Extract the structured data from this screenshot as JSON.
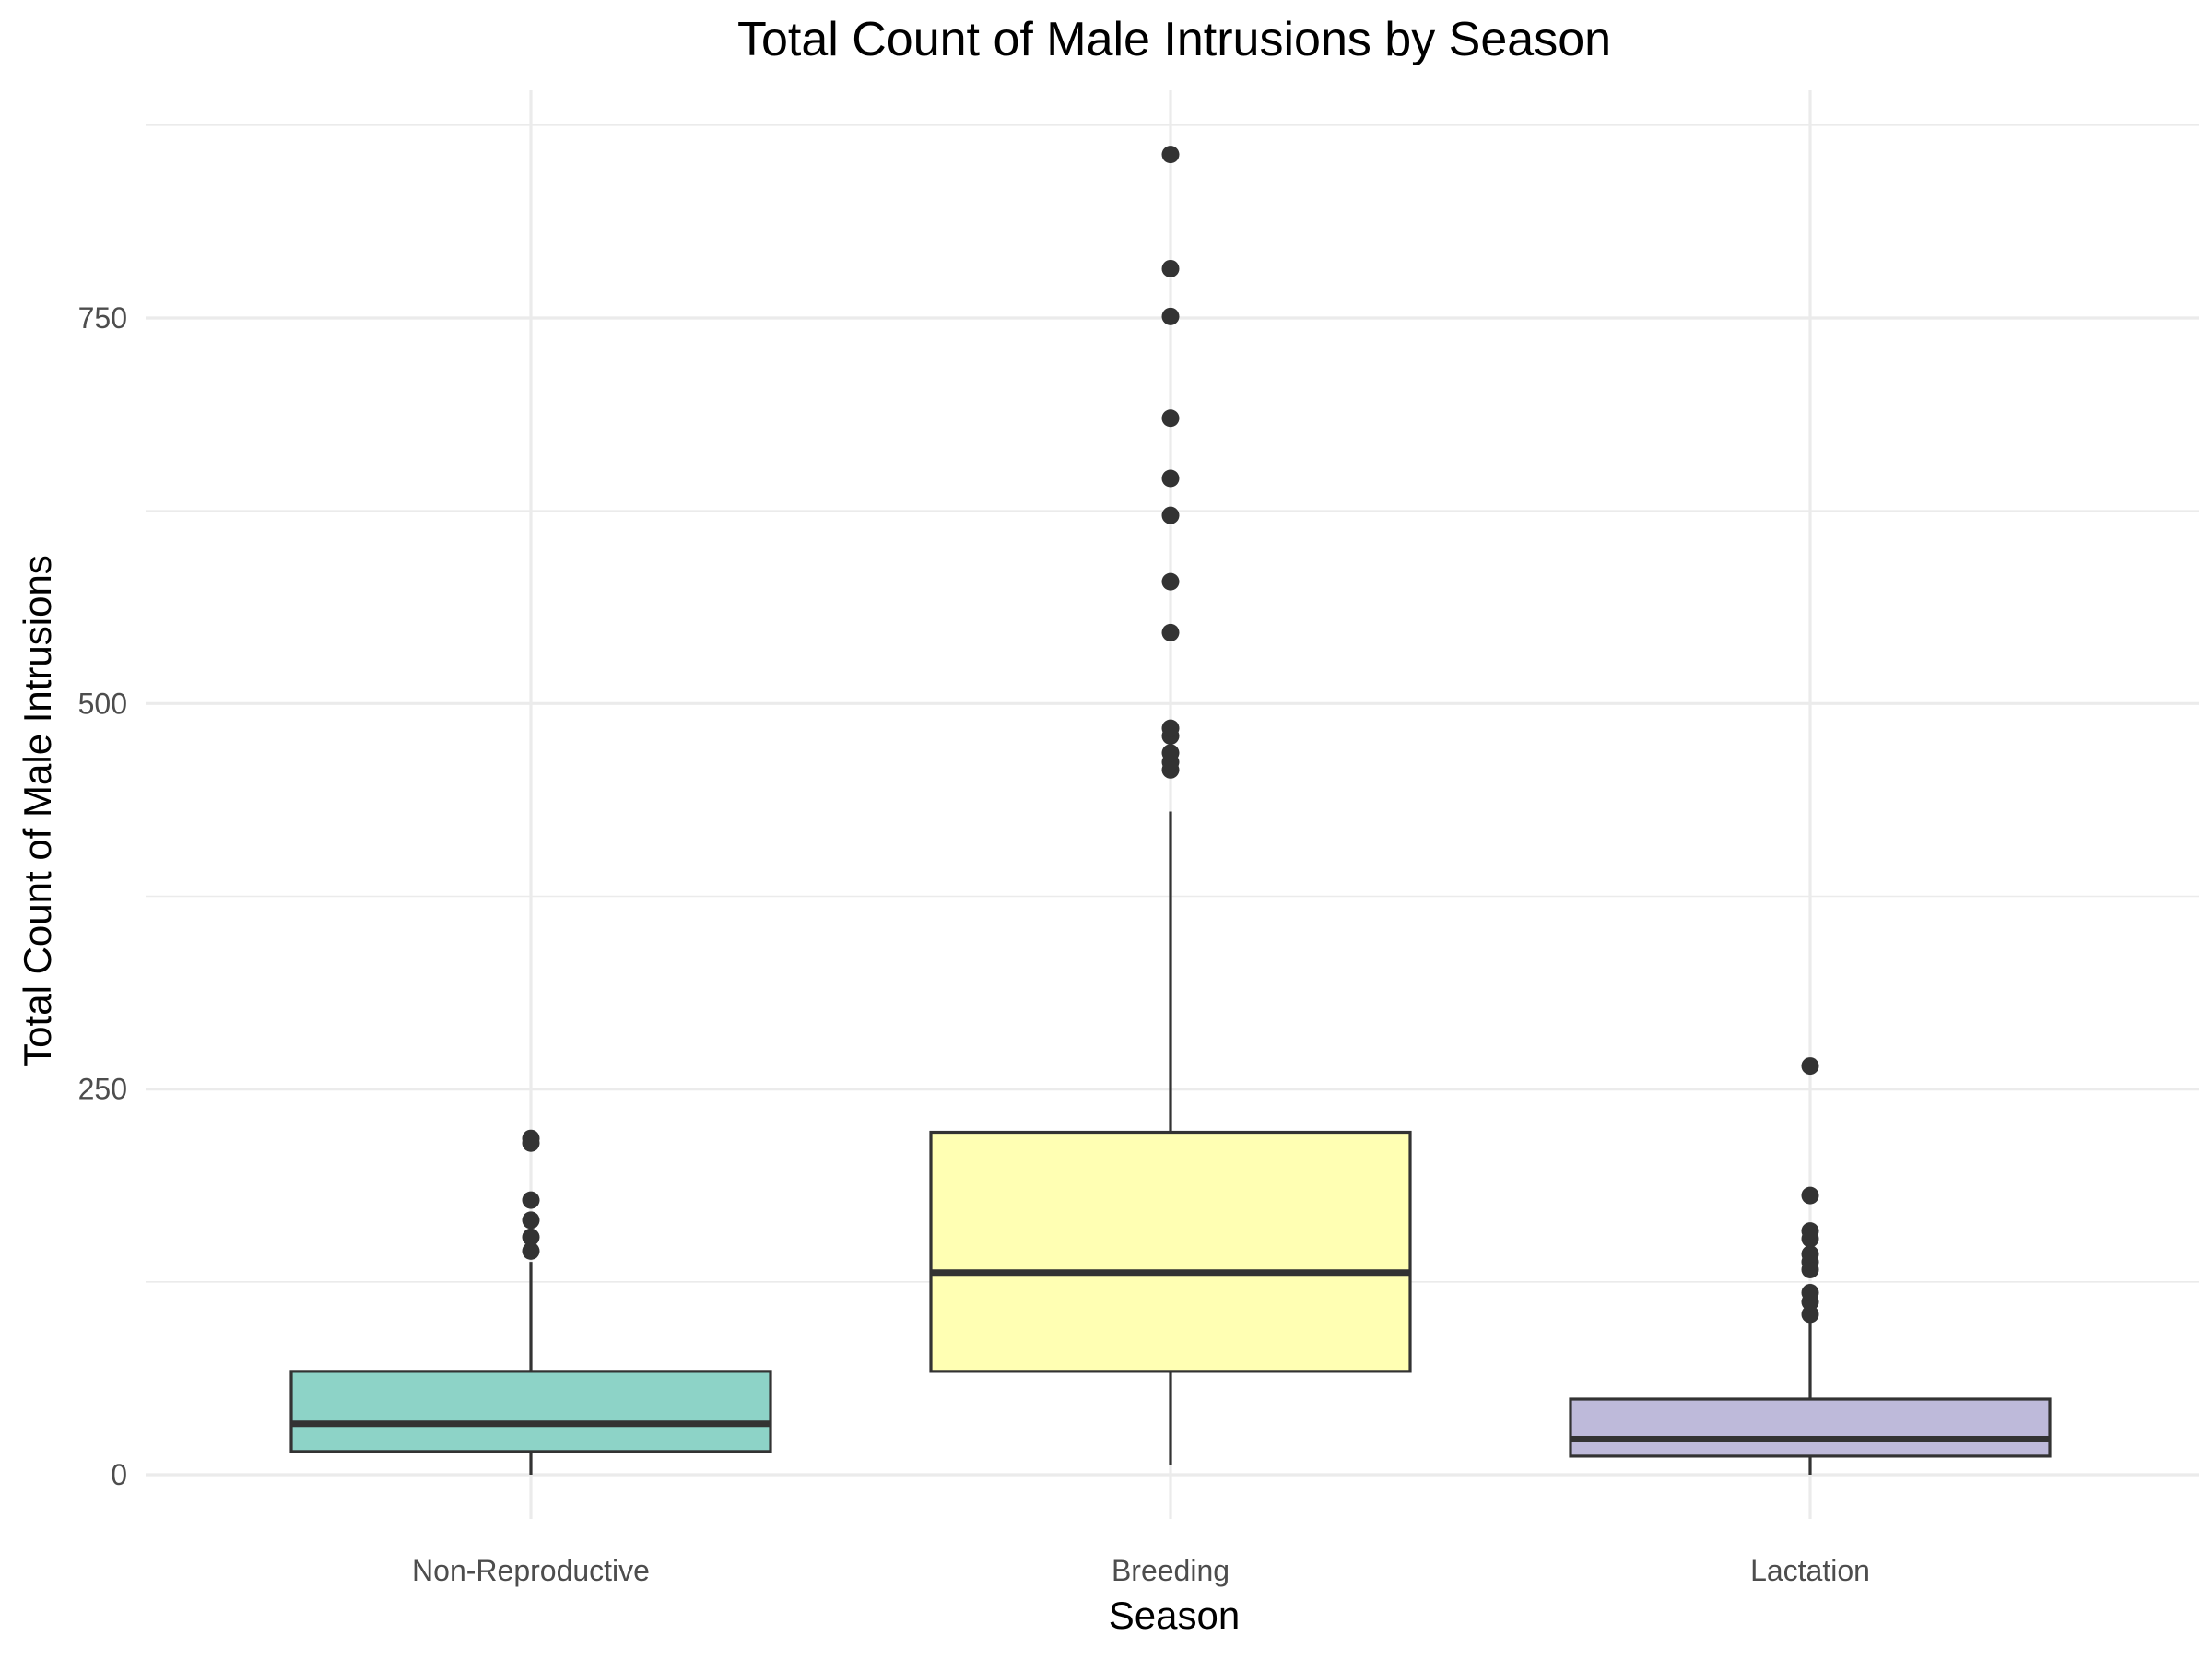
{
  "chart_data": {
    "type": "boxplot",
    "title": "Total Count of Male Intrusions by Season",
    "xlabel": "Season",
    "ylabel": "Total Count of Male Intrusions",
    "ylim": [
      -30,
      880
    ],
    "yticks": [
      0,
      250,
      500,
      750
    ],
    "yticks_minor": [
      125,
      375,
      625,
      875
    ],
    "grid": true,
    "legend": "none",
    "categories": [
      "Non-Reproductive",
      "Breeding",
      "Lactation"
    ],
    "boxes": [
      {
        "category": "Non-Reproductive",
        "color": "#8dd3c7",
        "whisker_low": 0,
        "q1": 15,
        "median": 33,
        "q3": 67,
        "whisker_high": 138,
        "outliers": [
          145,
          154,
          165,
          178,
          215,
          218
        ]
      },
      {
        "category": "Breeding",
        "color": "#ffffb3",
        "whisker_low": 6,
        "q1": 67,
        "median": 131,
        "q3": 222,
        "whisker_high": 430,
        "outliers": [
          457,
          462,
          468,
          479,
          484,
          546,
          579,
          622,
          646,
          685,
          751,
          782,
          856
        ]
      },
      {
        "category": "Lactation",
        "color": "#bebada",
        "whisker_low": 0,
        "q1": 12,
        "median": 23,
        "q3": 49,
        "whisker_high": 99,
        "outliers": [
          104,
          112,
          118,
          133,
          138,
          143,
          153,
          158,
          181,
          265
        ]
      }
    ]
  }
}
